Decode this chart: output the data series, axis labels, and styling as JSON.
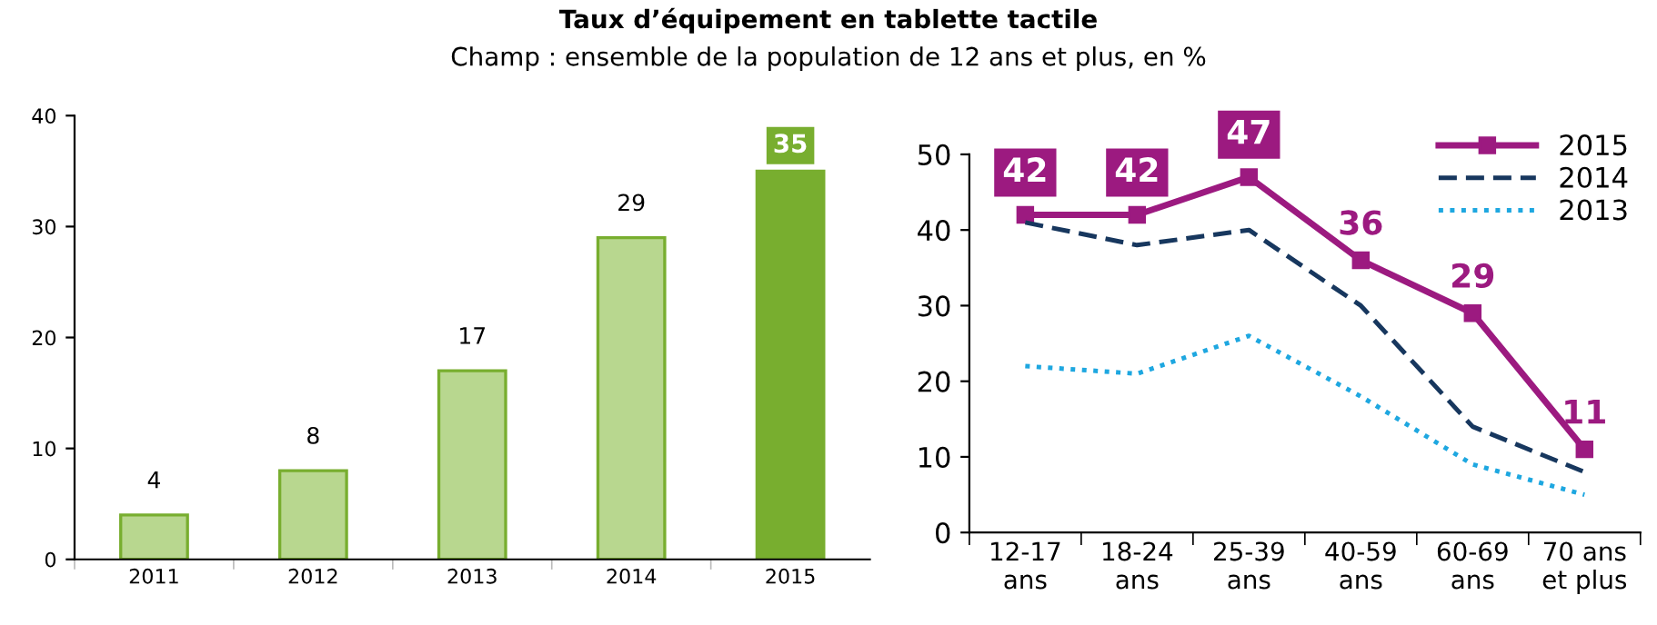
{
  "chart_data": [
    {
      "type": "bar",
      "title": "Taux d’équipement en tablette tactile",
      "subtitle": "Champ : ensemble de la population de 12 ans et plus, en %",
      "categories": [
        "2011",
        "2012",
        "2013",
        "2014",
        "2015"
      ],
      "values": [
        4,
        8,
        17,
        29,
        35
      ],
      "colors": [
        "#b8d78f",
        "#b8d78f",
        "#b8d78f",
        "#b8d78f",
        "#78ae2f"
      ],
      "ylim": [
        0,
        40
      ],
      "yticks": [
        0,
        10,
        20,
        30,
        40
      ],
      "data_labels": true,
      "grid": false
    },
    {
      "type": "line",
      "categories": [
        "12-17\nans",
        "18-24\nans",
        "25-39\nans",
        "40-59\nans",
        "60-69\nans",
        "70 ans\net plus"
      ],
      "series": [
        {
          "name": "2015",
          "color": "#9c1a80",
          "values": [
            42,
            42,
            47,
            36,
            29,
            11
          ],
          "line_style": "solid",
          "marker": "square",
          "value_labels": [
            "42",
            "42",
            "47",
            "36",
            "29",
            "11"
          ]
        },
        {
          "name": "2014",
          "color": "#17375e",
          "values": [
            41,
            38,
            40,
            30,
            14,
            8
          ],
          "line_style": "dashed"
        },
        {
          "name": "2013",
          "color": "#1ea7e0",
          "values": [
            22,
            21,
            26,
            18,
            9,
            5
          ],
          "line_style": "dotted"
        }
      ],
      "ylim": [
        0,
        50
      ],
      "yticks": [
        0,
        10,
        20,
        30,
        40,
        50
      ],
      "legend": "top right",
      "grid": false
    }
  ]
}
